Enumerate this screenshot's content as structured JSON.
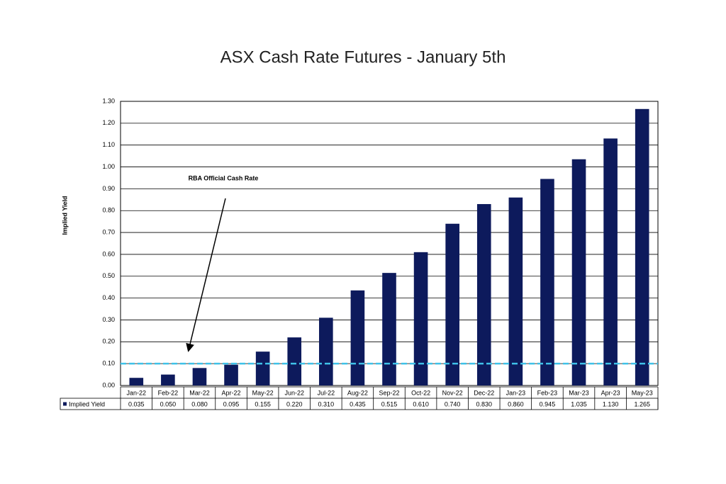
{
  "chart_data": {
    "type": "bar",
    "title": "ASX Cash Rate Futures - January 5th",
    "y_label": "Implied Yield",
    "categories": [
      "Jan-22",
      "Feb-22",
      "Mar-22",
      "Apr-22",
      "May-22",
      "Jun-22",
      "Jul-22",
      "Aug-22",
      "Sep-22",
      "Oct-22",
      "Nov-22",
      "Dec-22",
      "Jan-23",
      "Feb-23",
      "Mar-23",
      "Apr-23",
      "May-23"
    ],
    "series": [
      {
        "name": "Implied Yield",
        "color": "#0d1a5c",
        "values": [
          0.035,
          0.05,
          0.08,
          0.095,
          0.155,
          0.22,
          0.31,
          0.435,
          0.515,
          0.61,
          0.74,
          0.83,
          0.86,
          0.945,
          1.035,
          1.13,
          1.265
        ],
        "value_labels": [
          "0.035",
          "0.050",
          "0.080",
          "0.095",
          "0.155",
          "0.220",
          "0.310",
          "0.435",
          "0.515",
          "0.610",
          "0.740",
          "0.830",
          "0.860",
          "0.945",
          "1.035",
          "1.130",
          "1.265"
        ]
      }
    ],
    "ylim": [
      0,
      1.3
    ],
    "yticks": [
      {
        "value": 0,
        "label": "0.00"
      },
      {
        "value": 0.1,
        "label": "0.10"
      },
      {
        "value": 0.2,
        "label": "0.20"
      },
      {
        "value": 0.3,
        "label": "0.30"
      },
      {
        "value": 0.4,
        "label": "0.40"
      },
      {
        "value": 0.5,
        "label": "0.50"
      },
      {
        "value": 0.6,
        "label": "0.60"
      },
      {
        "value": 0.7,
        "label": "0.70"
      },
      {
        "value": 0.8,
        "label": "0.80"
      },
      {
        "value": 0.9,
        "label": "0.90"
      },
      {
        "value": 1,
        "label": "1.00"
      },
      {
        "value": 1.1,
        "label": "1.10"
      },
      {
        "value": 1.2,
        "label": "1.20"
      },
      {
        "value": 1.3,
        "label": "1.30"
      }
    ],
    "grid": true,
    "reference_line": {
      "value": 0.1,
      "color": "#3fc1e8",
      "dashed": true
    },
    "annotation": "RBA Official Cash Rate"
  }
}
